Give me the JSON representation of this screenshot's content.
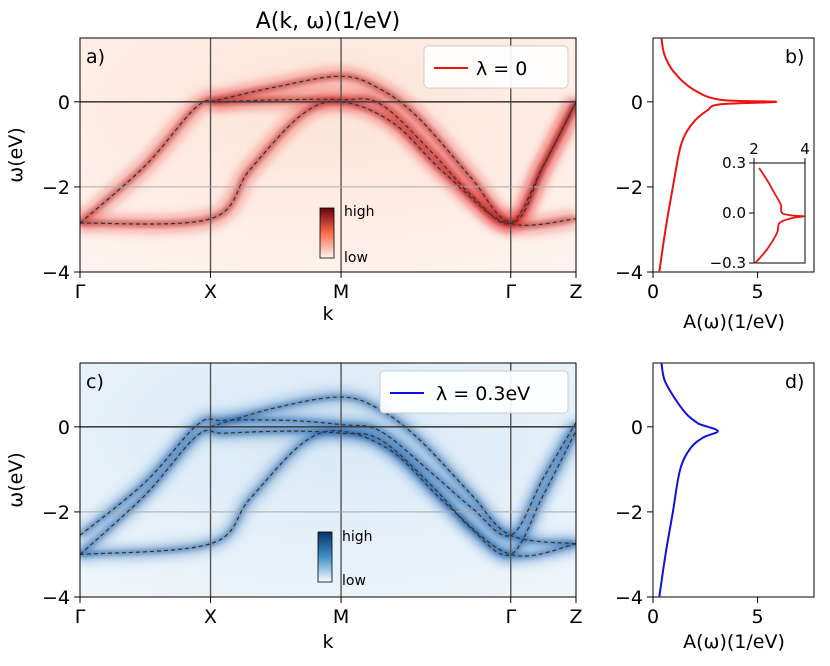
{
  "colors": {
    "red": "#e41a1c",
    "red_line": "#ee1111",
    "blue": "#1010dd",
    "red_dark": "#8b0000",
    "blue_dark": "#0a3d8a",
    "grid": "#aaaaaa"
  },
  "chart_data": [
    {
      "id": "a",
      "type": "heatmap",
      "title": "A(k, ω)(1/eV)",
      "panel_label": "a)",
      "xlabel": "k",
      "ylabel": "ω(eV)",
      "ylim": [
        -4,
        1.5
      ],
      "yticks": [
        -4,
        -2,
        0
      ],
      "ytick_labels": [
        "−4",
        "−2",
        "0"
      ],
      "xticks": [
        0,
        1,
        2,
        3.3,
        3.8
      ],
      "xtick_labels": [
        "Γ",
        "X",
        "M",
        "Γ",
        "Z"
      ],
      "xlim": [
        0,
        3.8
      ],
      "colormap": "Reds",
      "colorbar": {
        "high": "high",
        "low": "low"
      },
      "legend": {
        "label": "λ = 0",
        "location": "upper right"
      },
      "bands": [
        {
          "name": "band-1",
          "points": [
            [
              0,
              -2.85
            ],
            [
              0.5,
              -1.5
            ],
            [
              0.9,
              -0.1
            ],
            [
              1.1,
              0
            ],
            [
              1.6,
              0.05
            ],
            [
              2,
              0.05
            ],
            [
              2.3,
              -0.05
            ],
            [
              2.7,
              -1.2
            ],
            [
              3.0,
              -2.2
            ],
            [
              3.3,
              -2.85
            ],
            [
              3.55,
              -1.5
            ],
            [
              3.8,
              0
            ]
          ]
        },
        {
          "name": "band-2",
          "points": [
            [
              0,
              -2.85
            ],
            [
              1,
              -2.75
            ],
            [
              1.3,
              -1.6
            ],
            [
              1.7,
              -0.3
            ],
            [
              2,
              0
            ],
            [
              2.4,
              -0.5
            ],
            [
              2.8,
              -1.7
            ],
            [
              3.3,
              -2.85
            ],
            [
              3.55,
              -1.5
            ],
            [
              3.8,
              0
            ]
          ]
        },
        {
          "name": "band-3",
          "points": [
            [
              1,
              0
            ],
            [
              1.5,
              0.35
            ],
            [
              2,
              0.6
            ],
            [
              2.3,
              0.3
            ],
            [
              2.6,
              -0.4
            ],
            [
              3.0,
              -1.8
            ],
            [
              3.3,
              -2.85
            ],
            [
              3.8,
              -2.75
            ]
          ]
        }
      ]
    },
    {
      "id": "b",
      "type": "line",
      "panel_label": "b)",
      "xlabel": "A(ω)(1/eV)",
      "xlim": [
        0,
        7.7
      ],
      "xticks": [
        0,
        5
      ],
      "xtick_labels": [
        "0",
        "5"
      ],
      "ylim": [
        -4,
        1.5
      ],
      "yticks": [
        -4,
        -2,
        0
      ],
      "ytick_labels": [
        "−4",
        "−2",
        "0"
      ],
      "series": [
        {
          "name": "λ=0",
          "points": [
            [
              0.3,
              -4
            ],
            [
              0.6,
              -3
            ],
            [
              0.95,
              -2
            ],
            [
              1.35,
              -1
            ],
            [
              1.9,
              -0.5
            ],
            [
              2.6,
              -0.2
            ],
            [
              3.2,
              -0.06
            ],
            [
              5.9,
              0
            ],
            [
              3.2,
              0.05
            ],
            [
              1.9,
              0.3
            ],
            [
              1.0,
              0.7
            ],
            [
              0.55,
              1.1
            ],
            [
              0.4,
              1.5
            ]
          ]
        }
      ],
      "inset": {
        "xlim": [
          2,
          4
        ],
        "xticks": [
          2,
          4
        ],
        "xtick_labels": [
          "2",
          "4"
        ],
        "ylim": [
          -0.3,
          0.3
        ],
        "yticks": [
          -0.3,
          0.0,
          0.3
        ],
        "ytick_labels": [
          "−0.3",
          "0.0",
          "0.3"
        ],
        "points": [
          [
            2.05,
            -0.3
          ],
          [
            2.5,
            -0.22
          ],
          [
            2.9,
            -0.12
          ],
          [
            3.0,
            -0.06
          ],
          [
            3.5,
            -0.03
          ],
          [
            3.95,
            -0.02
          ],
          [
            3.5,
            -0.015
          ],
          [
            3.1,
            0.0
          ],
          [
            3.05,
            0.05
          ],
          [
            2.8,
            0.12
          ],
          [
            2.5,
            0.2
          ],
          [
            2.2,
            0.27
          ]
        ]
      }
    },
    {
      "id": "c",
      "type": "heatmap",
      "panel_label": "c)",
      "xlabel": "k",
      "ylabel": "ω(eV)",
      "ylim": [
        -4,
        1.5
      ],
      "yticks": [
        -4,
        -2,
        0
      ],
      "ytick_labels": [
        "−4",
        "−2",
        "0"
      ],
      "xticks": [
        0,
        1,
        2,
        3.3,
        3.8
      ],
      "xtick_labels": [
        "Γ",
        "X",
        "M",
        "Γ",
        "Z"
      ],
      "xlim": [
        0,
        3.8
      ],
      "colormap": "Blues",
      "colorbar": {
        "high": "high",
        "low": "low"
      },
      "legend": {
        "label": "λ = 0.3eV",
        "location": "upper right"
      },
      "bands": [
        {
          "name": "band-1",
          "points": [
            [
              0,
              -2.55
            ],
            [
              0.5,
              -1.3
            ],
            [
              0.9,
              0.05
            ],
            [
              1.1,
              0.15
            ],
            [
              1.6,
              0.15
            ],
            [
              2,
              0.05
            ],
            [
              2.3,
              -0.1
            ],
            [
              2.7,
              -1.1
            ],
            [
              3.0,
              -1.9
            ],
            [
              3.3,
              -2.55
            ],
            [
              3.55,
              -1.2
            ],
            [
              3.8,
              0.1
            ]
          ]
        },
        {
          "name": "band-2",
          "points": [
            [
              0,
              -3.0
            ],
            [
              0.5,
              -1.6
            ],
            [
              0.9,
              -0.2
            ],
            [
              1.1,
              -0.15
            ],
            [
              1.6,
              -0.1
            ],
            [
              2,
              -0.15
            ],
            [
              2.3,
              -0.3
            ],
            [
              2.7,
              -1.4
            ],
            [
              3.0,
              -2.4
            ],
            [
              3.3,
              -3.0
            ],
            [
              3.55,
              -1.6
            ],
            [
              3.8,
              -0.1
            ]
          ]
        },
        {
          "name": "band-3",
          "points": [
            [
              0,
              -3.0
            ],
            [
              1,
              -2.75
            ],
            [
              1.3,
              -1.7
            ],
            [
              1.7,
              -0.4
            ],
            [
              2,
              -0.1
            ],
            [
              2.4,
              -0.6
            ],
            [
              2.8,
              -1.8
            ],
            [
              3.3,
              -3.0
            ],
            [
              3.8,
              -2.75
            ]
          ]
        },
        {
          "name": "band-4",
          "points": [
            [
              1,
              0
            ],
            [
              1.5,
              0.45
            ],
            [
              2,
              0.7
            ],
            [
              2.3,
              0.4
            ],
            [
              2.6,
              -0.3
            ],
            [
              3.0,
              -1.6
            ],
            [
              3.3,
              -2.55
            ],
            [
              3.8,
              -2.75
            ]
          ]
        }
      ]
    },
    {
      "id": "d",
      "type": "line",
      "panel_label": "d)",
      "xlabel": "A(ω)(1/eV)",
      "xlim": [
        0,
        7.7
      ],
      "xticks": [
        0,
        5
      ],
      "xtick_labels": [
        "0",
        "5"
      ],
      "ylim": [
        -4,
        1.5
      ],
      "yticks": [
        -4,
        -2,
        0
      ],
      "ytick_labels": [
        "−4",
        "−2",
        "0"
      ],
      "series": [
        {
          "name": "λ=0.3eV",
          "points": [
            [
              0.3,
              -4
            ],
            [
              0.6,
              -3
            ],
            [
              0.95,
              -2
            ],
            [
              1.3,
              -1
            ],
            [
              1.8,
              -0.5
            ],
            [
              2.4,
              -0.25
            ],
            [
              3.1,
              -0.1
            ],
            [
              2.3,
              0.05
            ],
            [
              2.1,
              0.1
            ],
            [
              1.6,
              0.3
            ],
            [
              1.0,
              0.7
            ],
            [
              0.55,
              1.1
            ],
            [
              0.4,
              1.5
            ]
          ]
        }
      ]
    }
  ]
}
